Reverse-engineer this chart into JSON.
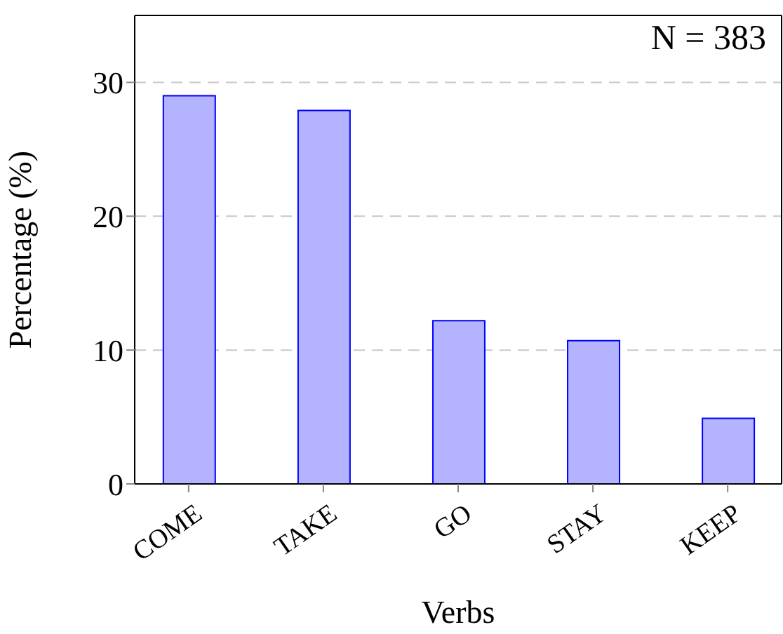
{
  "chart_data": {
    "type": "bar",
    "xlabel": "Verbs",
    "ylabel": "Percentage (%)",
    "categories": [
      "COME",
      "TAKE",
      "GO",
      "STAY",
      "KEEP"
    ],
    "values": [
      29.0,
      27.9,
      12.2,
      10.7,
      4.9
    ],
    "color": "#b3b3ff",
    "ylim": [
      0,
      35
    ],
    "yticks": [
      0,
      10,
      20,
      30
    ],
    "grid": "y",
    "annotations": [
      "N = 383"
    ]
  }
}
